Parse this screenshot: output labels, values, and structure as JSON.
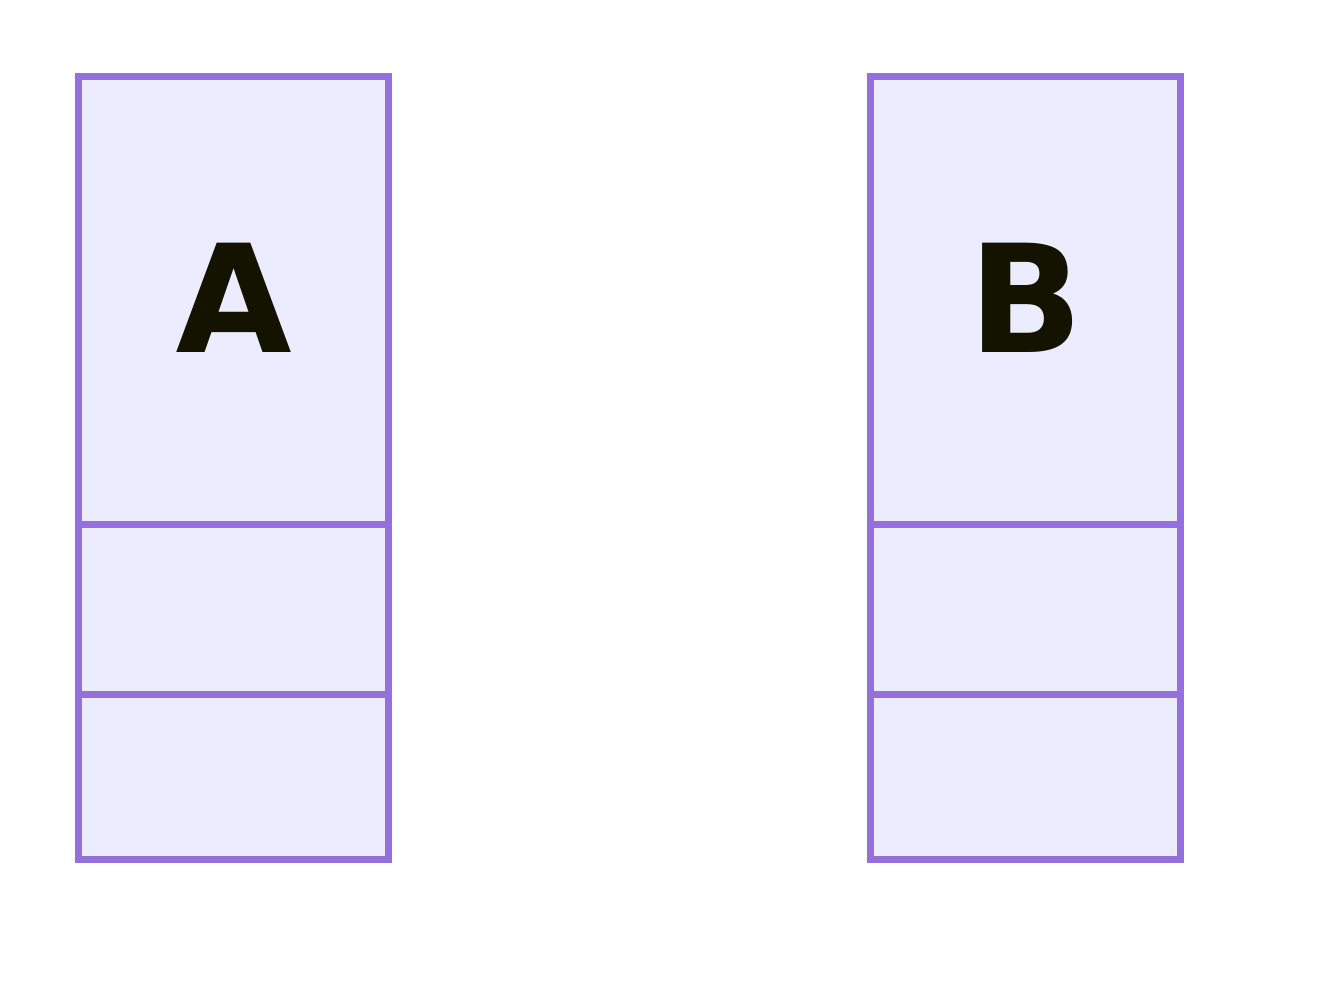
{
  "diagram": {
    "type": "class-diagram",
    "colors": {
      "background": "#ffffff",
      "box_fill": "#ECECFF",
      "box_stroke": "#9370DB",
      "text": "#131300"
    },
    "classes": [
      {
        "name": "A",
        "attributes": [],
        "methods": []
      },
      {
        "name": "B",
        "attributes": [],
        "methods": []
      }
    ]
  }
}
